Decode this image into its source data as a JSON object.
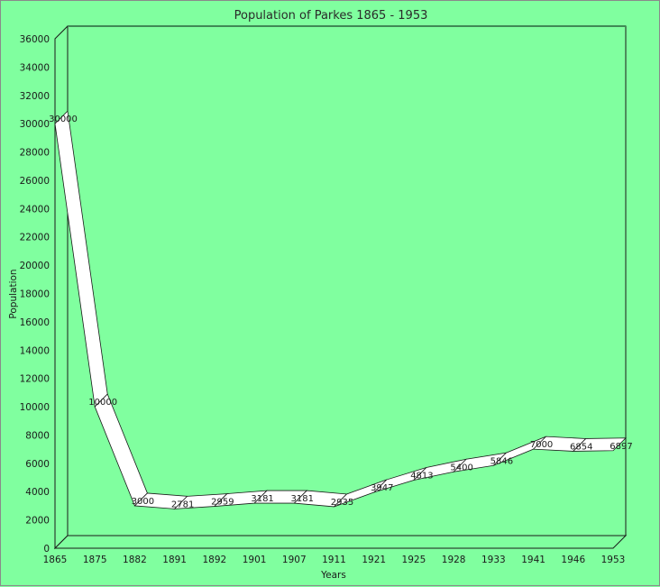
{
  "chart_data": {
    "type": "line",
    "style": "3d-ribbon",
    "title": "Population of Parkes 1865 - 1953",
    "xlabel": "Years",
    "ylabel": "Population",
    "categories": [
      "1865",
      "1875",
      "1882",
      "1891",
      "1892",
      "1901",
      "1907",
      "1911",
      "1921",
      "1925",
      "1928",
      "1933",
      "1941",
      "1946",
      "1953"
    ],
    "series": [
      {
        "name": "Population",
        "values": [
          30000,
          10000,
          3000,
          2781,
          2959,
          3181,
          3181,
          2935,
          3947,
          4813,
          5400,
          5846,
          7000,
          6854,
          6897
        ]
      }
    ],
    "ylim": [
      0,
      36000
    ],
    "yticks": [
      0,
      2000,
      4000,
      6000,
      8000,
      10000,
      12000,
      14000,
      16000,
      18000,
      20000,
      22000,
      24000,
      26000,
      28000,
      30000,
      32000,
      34000,
      36000
    ],
    "grid": false,
    "legend": "none",
    "data_labels": true
  },
  "colors": {
    "background": "#80ff9f",
    "plot_back": "#80ff9f",
    "ribbon_fill": "#ffffff",
    "line": "#1a1a1a"
  }
}
